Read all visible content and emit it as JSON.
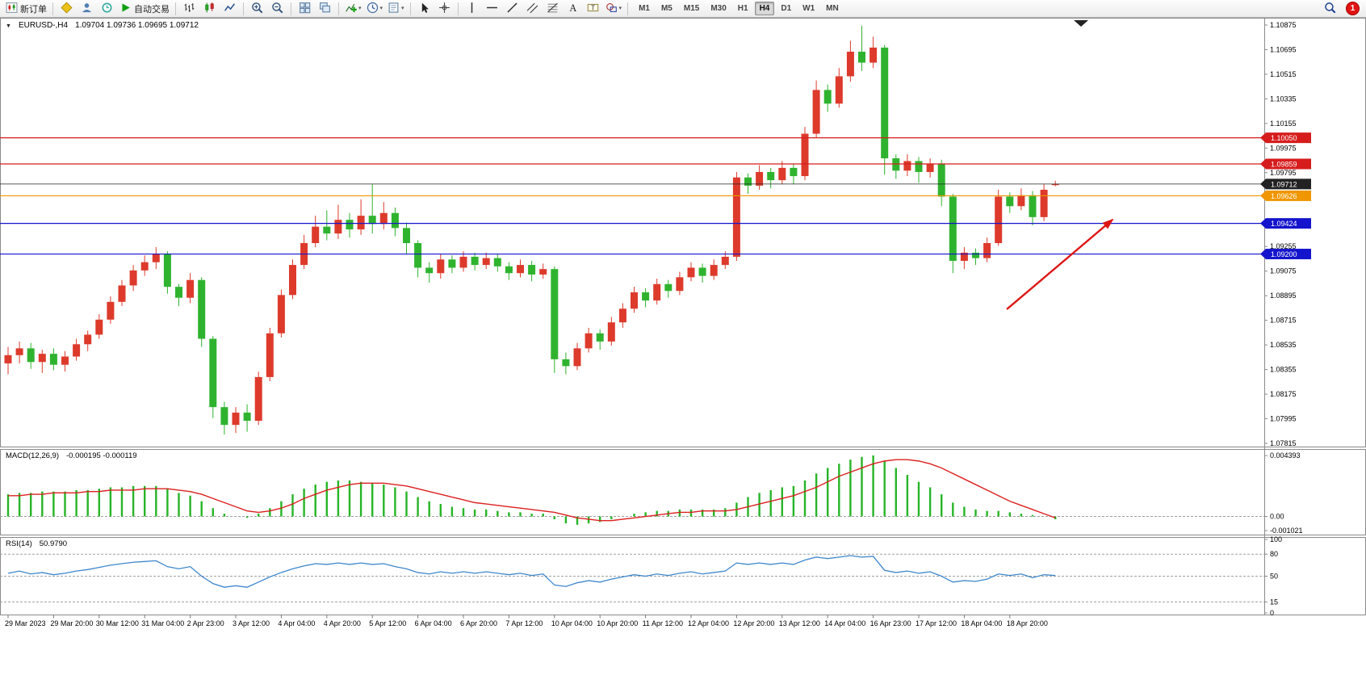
{
  "toolbar": {
    "new_order_label": "新订单",
    "auto_trading_label": "自动交易",
    "groups": [
      [
        "new-order"
      ],
      [
        "expert-advisors",
        "depth-of-market",
        "history-center",
        "auto-trading"
      ],
      [
        "bar-chart",
        "candlestick-chart",
        "line-chart"
      ],
      [
        "zoom-in",
        "zoom-out"
      ],
      [
        "tile-windows",
        "cascade-windows"
      ],
      [
        "indicators",
        "periods",
        "templates"
      ],
      [
        "cursor",
        "crosshair"
      ],
      [
        "vertical-line",
        "horizontal-line",
        "trendline",
        "channel",
        "fibonacci",
        "text",
        "text-label",
        "shapes"
      ]
    ],
    "dropdowns": [
      "indicators",
      "periods",
      "templates",
      "shapes"
    ],
    "timeframes": [
      "M1",
      "M5",
      "M15",
      "M30",
      "H1",
      "H4",
      "D1",
      "W1",
      "MN"
    ],
    "active_timeframe": "H4",
    "badge": "1"
  },
  "chart_data": {
    "type": "candlestick",
    "title": {
      "symbol": "EURUSD-,H4",
      "ohlc": "1.09704 1.09736 1.09695 1.09712"
    },
    "colors": {
      "bull": "#dd3a2c",
      "bear": "#2fb32f",
      "macd_hist": "#27b427",
      "macd_signal": "#dd2020",
      "rsi": "#3f87cc",
      "red_level": "#d61c1c",
      "blue_level": "#1414cc",
      "orange_level": "#f09600",
      "current": "#222222",
      "arrow": "#dd1515"
    },
    "candles": [
      [
        1.084,
        1.0852,
        1.0832,
        1.0846
      ],
      [
        1.0846,
        1.0856,
        1.084,
        1.0851
      ],
      [
        1.0851,
        1.0855,
        1.0836,
        1.0841
      ],
      [
        1.0841,
        1.085,
        1.0833,
        1.0847
      ],
      [
        1.0847,
        1.0851,
        1.0835,
        1.0839
      ],
      [
        1.0839,
        1.0849,
        1.0834,
        1.0845
      ],
      [
        1.0845,
        1.0858,
        1.0842,
        1.0854
      ],
      [
        1.0854,
        1.0864,
        1.0849,
        1.0861
      ],
      [
        1.0861,
        1.0876,
        1.0858,
        1.0872
      ],
      [
        1.0872,
        1.0889,
        1.0869,
        1.0885
      ],
      [
        1.0885,
        1.0901,
        1.0882,
        1.0897
      ],
      [
        1.0897,
        1.0912,
        1.0893,
        1.0908
      ],
      [
        1.0908,
        1.0919,
        1.0904,
        1.0914
      ],
      [
        1.0914,
        1.0925,
        1.0909,
        1.092
      ],
      [
        1.092,
        1.0922,
        1.0891,
        1.0896
      ],
      [
        1.0896,
        1.0898,
        1.0882,
        1.0888
      ],
      [
        1.0888,
        1.0906,
        1.0884,
        1.0901
      ],
      [
        1.0901,
        1.0903,
        1.0852,
        1.0858
      ],
      [
        1.0858,
        1.086,
        1.08,
        1.0808
      ],
      [
        1.0808,
        1.0812,
        1.0788,
        1.0795
      ],
      [
        1.0795,
        1.0808,
        1.0789,
        1.0804
      ],
      [
        1.0804,
        1.081,
        1.079,
        1.0798
      ],
      [
        1.0798,
        1.0834,
        1.0795,
        1.083
      ],
      [
        1.083,
        1.0866,
        1.0827,
        1.0862
      ],
      [
        1.0862,
        1.0894,
        1.0859,
        1.089
      ],
      [
        1.089,
        1.0916,
        1.0887,
        1.0912
      ],
      [
        1.0912,
        1.0934,
        1.0909,
        1.0928
      ],
      [
        1.0928,
        1.0948,
        1.0925,
        1.094
      ],
      [
        1.094,
        1.0952,
        1.093,
        1.0935
      ],
      [
        1.0935,
        1.0956,
        1.0931,
        1.0945
      ],
      [
        1.0945,
        1.095,
        1.0932,
        1.0938
      ],
      [
        1.0938,
        1.096,
        1.0934,
        1.0948
      ],
      [
        1.0948,
        1.0971,
        1.0935,
        1.0942
      ],
      [
        1.0942,
        1.0958,
        1.0938,
        1.095
      ],
      [
        1.095,
        1.0954,
        1.0933,
        1.0939
      ],
      [
        1.0939,
        1.0943,
        1.092,
        1.0928
      ],
      [
        1.0928,
        1.093,
        1.0903,
        1.091
      ],
      [
        1.091,
        1.0914,
        1.0899,
        1.0906
      ],
      [
        1.0906,
        1.092,
        1.0902,
        1.0916
      ],
      [
        1.0916,
        1.0919,
        1.0906,
        1.091
      ],
      [
        1.091,
        1.0922,
        1.0907,
        1.0918
      ],
      [
        1.0918,
        1.0921,
        1.0908,
        1.0912
      ],
      [
        1.0912,
        1.0921,
        1.0909,
        1.0917
      ],
      [
        1.0917,
        1.092,
        1.0907,
        1.0911
      ],
      [
        1.0911,
        1.0914,
        1.0901,
        1.0906
      ],
      [
        1.0906,
        1.0916,
        1.0903,
        1.0912
      ],
      [
        1.0912,
        1.0915,
        1.09,
        1.0905
      ],
      [
        1.0905,
        1.0913,
        1.0902,
        1.0909
      ],
      [
        1.0909,
        1.0911,
        1.0833,
        1.0843
      ],
      [
        1.0843,
        1.0848,
        1.0832,
        1.0838
      ],
      [
        1.0838,
        1.0855,
        1.0835,
        1.0851
      ],
      [
        1.0851,
        1.0866,
        1.0848,
        1.0862
      ],
      [
        1.0862,
        1.0865,
        1.085,
        1.0856
      ],
      [
        1.0856,
        1.0874,
        1.0853,
        1.087
      ],
      [
        1.087,
        1.0884,
        1.0866,
        1.088
      ],
      [
        1.088,
        1.0896,
        1.0877,
        1.0892
      ],
      [
        1.0892,
        1.0895,
        1.0881,
        1.0886
      ],
      [
        1.0886,
        1.0902,
        1.0883,
        1.0898
      ],
      [
        1.0898,
        1.0901,
        1.0888,
        1.0893
      ],
      [
        1.0893,
        1.0907,
        1.089,
        1.0903
      ],
      [
        1.0903,
        1.0914,
        1.09,
        1.091
      ],
      [
        1.091,
        1.0913,
        1.0899,
        1.0904
      ],
      [
        1.0904,
        1.0916,
        1.0901,
        1.0912
      ],
      [
        1.0912,
        1.0922,
        1.0909,
        1.0918
      ],
      [
        1.0918,
        1.098,
        1.0915,
        1.0976
      ],
      [
        1.0976,
        1.0979,
        1.0964,
        1.097
      ],
      [
        1.097,
        1.0985,
        1.0967,
        1.098
      ],
      [
        1.098,
        1.0983,
        1.0968,
        1.0974
      ],
      [
        1.0974,
        1.0988,
        1.0971,
        1.0983
      ],
      [
        1.0983,
        1.0986,
        1.0971,
        1.0977
      ],
      [
        1.0977,
        1.1013,
        1.0974,
        1.1008
      ],
      [
        1.1008,
        1.1047,
        1.1005,
        1.104
      ],
      [
        1.104,
        1.1044,
        1.1024,
        1.103
      ],
      [
        1.103,
        1.1056,
        1.1027,
        1.105
      ],
      [
        1.105,
        1.1076,
        1.1046,
        1.1068
      ],
      [
        1.1068,
        1.1087,
        1.1054,
        1.106
      ],
      [
        1.106,
        1.1079,
        1.1056,
        1.1071
      ],
      [
        1.1071,
        1.1073,
        1.0978,
        1.099
      ],
      [
        1.099,
        1.0993,
        1.0975,
        1.0981
      ],
      [
        1.0981,
        1.0993,
        1.0977,
        1.0988
      ],
      [
        1.0988,
        1.0991,
        1.0972,
        1.098
      ],
      [
        1.098,
        1.099,
        1.0976,
        1.0986
      ],
      [
        1.0986,
        1.0989,
        1.0955,
        1.0962
      ],
      [
        1.0962,
        1.0964,
        1.0906,
        1.0915
      ],
      [
        1.0915,
        1.0925,
        1.0909,
        1.0921
      ],
      [
        1.0921,
        1.0924,
        1.0912,
        1.0917
      ],
      [
        1.0917,
        1.0932,
        1.0914,
        1.0928
      ],
      [
        1.0928,
        1.0967,
        1.0926,
        1.0962
      ],
      [
        1.0962,
        1.0965,
        1.095,
        1.0955
      ],
      [
        1.0955,
        1.0968,
        1.0952,
        1.0963
      ],
      [
        1.0963,
        1.0966,
        1.0941,
        1.0947
      ],
      [
        1.0947,
        1.0971,
        1.0944,
        1.0967
      ],
      [
        1.09704,
        1.09736,
        1.09695,
        1.09712
      ]
    ],
    "time_labels": [
      "29 Mar 2023",
      "29 Mar 20:00",
      "30 Mar 12:00",
      "31 Mar 04:00",
      "2 Apr 23:00",
      "3 Apr 12:00",
      "4 Apr 04:00",
      "4 Apr 20:00",
      "5 Apr 12:00",
      "6 Apr 04:00",
      "6 Apr 20:00",
      "7 Apr 12:00",
      "10 Apr 04:00",
      "10 Apr 20:00",
      "11 Apr 12:00",
      "12 Apr 04:00",
      "12 Apr 20:00",
      "13 Apr 12:00",
      "14 Apr 04:00",
      "16 Apr 23:00",
      "17 Apr 12:00",
      "18 Apr 04:00",
      "18 Apr 20:00"
    ],
    "price_axis": {
      "min": 1.07815,
      "max": 1.10875,
      "labels": [
        "1.10875",
        "1.10695",
        "1.10515",
        "1.10335",
        "1.10155",
        "1.09975",
        "1.09795",
        "1.09615",
        "1.09435",
        "1.09255",
        "1.09075",
        "1.08895",
        "1.08715",
        "1.08535",
        "1.08355",
        "1.08175",
        "1.07995",
        "1.07815"
      ]
    },
    "price_lines": [
      {
        "price": 1.1005,
        "label": "1.10050",
        "color": "#d61c1c",
        "kind": "resistance"
      },
      {
        "price": 1.09859,
        "label": "1.09859",
        "color": "#d61c1c",
        "kind": "resistance"
      },
      {
        "price": 1.09712,
        "label": "1.09712",
        "color": "#222222",
        "kind": "current-bid"
      },
      {
        "price": 1.09626,
        "label": "1.09626",
        "color": "#f09600",
        "kind": "level"
      },
      {
        "price": 1.09424,
        "label": "1.09424",
        "color": "#1414cc",
        "kind": "support"
      },
      {
        "price": 1.092,
        "label": "1.09200",
        "color": "#1414cc",
        "kind": "support"
      }
    ],
    "macd": {
      "label": "MACD(12,26,9)",
      "values": "-0.000195 -0.000119",
      "ylim": [
        -0.00125,
        0.00475
      ],
      "axis": [
        {
          "v": 0.004393,
          "text": "0.004393"
        },
        {
          "v": 0,
          "text": "0.00"
        },
        {
          "v": -0.001021,
          "text": "-0.001021"
        }
      ],
      "histogram": [
        0.0016,
        0.0017,
        0.0017,
        0.0018,
        0.0018,
        0.0018,
        0.0019,
        0.0019,
        0.002,
        0.0021,
        0.0021,
        0.0022,
        0.0022,
        0.0022,
        0.002,
        0.0017,
        0.0015,
        0.0011,
        0.0006,
        0.0002,
        0,
        -0.0001,
        0.0002,
        0.0006,
        0.0011,
        0.0016,
        0.002,
        0.0023,
        0.0025,
        0.0026,
        0.0026,
        0.0025,
        0.0024,
        0.0023,
        0.0021,
        0.0018,
        0.0014,
        0.0011,
        0.0009,
        0.0007,
        0.0006,
        0.0005,
        0.0005,
        0.0004,
        0.0003,
        0.0003,
        0.0002,
        0.0002,
        -0.0002,
        -0.0005,
        -0.0006,
        -0.0005,
        -0.0004,
        -0.0002,
        0,
        0.0002,
        0.0003,
        0.0004,
        0.0004,
        0.0005,
        0.0005,
        0.0005,
        0.0005,
        0.0006,
        0.001,
        0.0014,
        0.0017,
        0.0019,
        0.0021,
        0.0022,
        0.0026,
        0.0031,
        0.0035,
        0.0038,
        0.0041,
        0.0043,
        0.0044,
        0.004,
        0.0035,
        0.003,
        0.0025,
        0.0021,
        0.0016,
        0.001,
        0.0007,
        0.0005,
        0.0004,
        0.0004,
        0.0003,
        0.0002,
        0.0001,
        0,
        -0.0002
      ],
      "signal": [
        0.0015,
        0.0015,
        0.0016,
        0.0016,
        0.0017,
        0.0017,
        0.0017,
        0.0018,
        0.0018,
        0.0019,
        0.0019,
        0.0019,
        0.002,
        0.002,
        0.002,
        0.0019,
        0.0018,
        0.0016,
        0.0013,
        0.001,
        0.0007,
        0.0004,
        0.0003,
        0.0004,
        0.0006,
        0.0009,
        0.0013,
        0.0016,
        0.0019,
        0.0021,
        0.0023,
        0.0024,
        0.0024,
        0.0024,
        0.0023,
        0.0022,
        0.002,
        0.0018,
        0.0016,
        0.0014,
        0.0012,
        0.001,
        0.0009,
        0.0008,
        0.0007,
        0.0006,
        0.0005,
        0.0004,
        0.0003,
        0.0001,
        -0.0001,
        -0.0002,
        -0.0003,
        -0.0003,
        -0.0002,
        -0.0001,
        0,
        0.0001,
        0.0002,
        0.0003,
        0.0003,
        0.0004,
        0.0004,
        0.0004,
        0.0005,
        0.0007,
        0.0009,
        0.0011,
        0.0013,
        0.0015,
        0.0018,
        0.0021,
        0.0025,
        0.0029,
        0.0032,
        0.0035,
        0.0038,
        0.004,
        0.0041,
        0.0041,
        0.004,
        0.0038,
        0.0035,
        0.0031,
        0.0027,
        0.0023,
        0.0019,
        0.0015,
        0.0011,
        0.0008,
        0.0005,
        0.0002,
        -0.0001
      ]
    },
    "rsi": {
      "label": "RSI(14)",
      "value": "50.9790",
      "ylim": [
        0,
        100
      ],
      "levels": [
        80,
        50,
        15
      ],
      "axis_labels": [
        "100",
        "80",
        "50",
        "15",
        "0"
      ],
      "values": [
        54,
        57,
        53,
        55,
        52,
        54,
        57,
        59,
        62,
        65,
        67,
        69,
        70,
        71,
        63,
        60,
        63,
        50,
        40,
        35,
        37,
        35,
        42,
        49,
        55,
        60,
        64,
        67,
        66,
        68,
        66,
        68,
        66,
        67,
        63,
        60,
        55,
        53,
        56,
        54,
        56,
        54,
        56,
        54,
        52,
        54,
        51,
        53,
        38,
        36,
        41,
        44,
        42,
        46,
        49,
        52,
        50,
        53,
        51,
        54,
        56,
        53,
        55,
        57,
        68,
        66,
        68,
        66,
        68,
        66,
        72,
        76,
        74,
        76,
        78,
        76,
        77,
        58,
        55,
        57,
        54,
        56,
        50,
        42,
        44,
        43,
        46,
        53,
        51,
        53,
        48,
        52,
        51
      ]
    },
    "annotations": [
      {
        "type": "arrow",
        "from": [
          1247,
          361
        ],
        "to": [
          1378,
          250
        ]
      }
    ]
  }
}
